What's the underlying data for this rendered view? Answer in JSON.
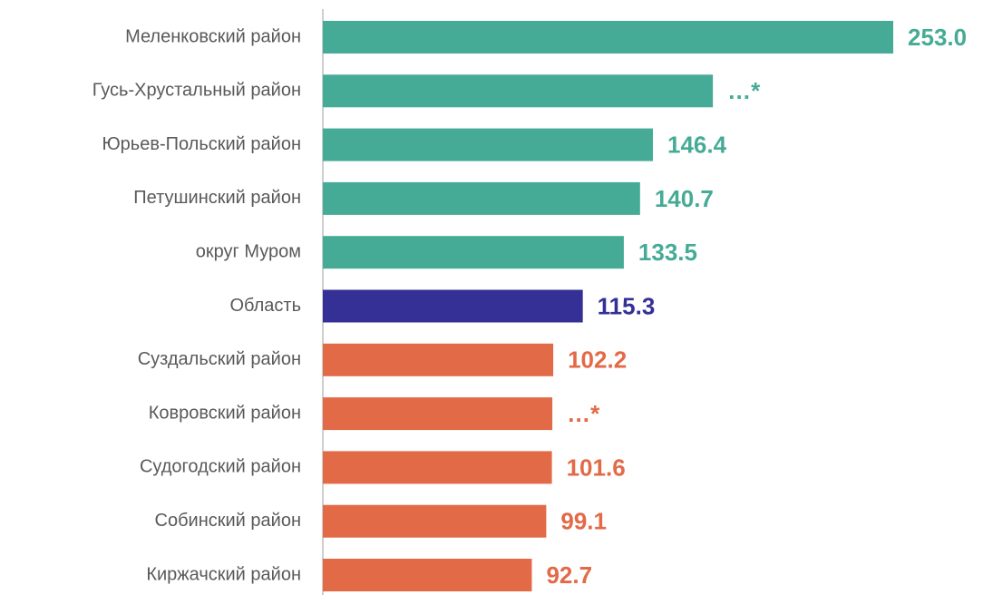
{
  "chart_data": {
    "type": "barh",
    "categories": [
      "Меленковский район",
      "Гусь-Хрустальный район",
      "Юрьев-Польский район",
      "Петушинский район",
      "округ Муром",
      "Область",
      "Суздальский район",
      "Ковровский район",
      "Судогодский район",
      "Собинский район",
      "Киржачский район"
    ],
    "values": [
      253.0,
      173,
      146.4,
      140.7,
      133.5,
      115.3,
      102.2,
      101.8,
      101.6,
      99.1,
      92.7
    ],
    "value_labels": [
      "253.0",
      "…*",
      "146.4",
      "140.7",
      "133.5",
      "115.3",
      "102.2",
      "…*",
      "101.6",
      "99.1",
      "92.7"
    ],
    "colors": [
      "#46ab96",
      "#46ab96",
      "#46ab96",
      "#46ab96",
      "#46ab96",
      "#353096",
      "#e36a47",
      "#e36a47",
      "#e36a47",
      "#e36a47",
      "#e36a47"
    ],
    "xlim": [
      0,
      292
    ]
  }
}
